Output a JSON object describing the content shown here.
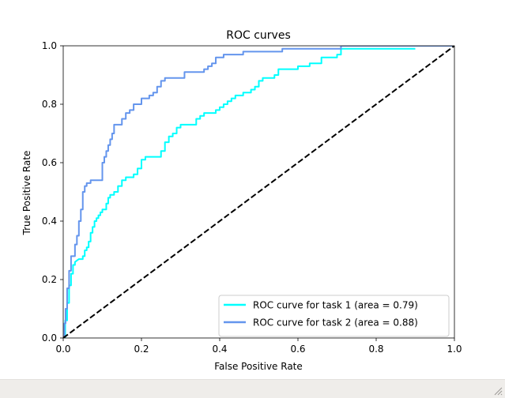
{
  "window": {
    "background": "#ffffff",
    "statusbar_color": "#efedea"
  },
  "chart_data": {
    "type": "line",
    "title": "ROC curves",
    "xlabel": "False Positive Rate",
    "ylabel": "True Positive Rate",
    "xlim": [
      0.0,
      1.0
    ],
    "ylim": [
      0.0,
      1.0
    ],
    "xticks": [
      0.0,
      0.2,
      0.4,
      0.6,
      0.8,
      1.0
    ],
    "yticks": [
      0.0,
      0.2,
      0.4,
      0.6,
      0.8,
      1.0
    ],
    "xtick_labels": [
      "0.0",
      "0.2",
      "0.4",
      "0.6",
      "0.8",
      "1.0"
    ],
    "ytick_labels": [
      "0.0",
      "0.2",
      "0.4",
      "0.6",
      "0.8",
      "1.0"
    ],
    "grid": false,
    "legend_position": "lower-right",
    "series": [
      {
        "name": "ROC curve for task 1 (area = 0.79)",
        "color": "#00ffff",
        "style": "solid",
        "x": [
          0.0,
          0.005,
          0.005,
          0.01,
          0.01,
          0.015,
          0.015,
          0.02,
          0.02,
          0.025,
          0.025,
          0.03,
          0.03,
          0.04,
          0.05,
          0.05,
          0.055,
          0.055,
          0.06,
          0.06,
          0.065,
          0.065,
          0.07,
          0.07,
          0.075,
          0.075,
          0.08,
          0.08,
          0.085,
          0.085,
          0.09,
          0.09,
          0.095,
          0.095,
          0.1,
          0.1,
          0.11,
          0.11,
          0.115,
          0.115,
          0.12,
          0.12,
          0.13,
          0.13,
          0.14,
          0.14,
          0.15,
          0.15,
          0.16,
          0.16,
          0.18,
          0.18,
          0.19,
          0.19,
          0.2,
          0.2,
          0.21,
          0.21,
          0.25,
          0.25,
          0.26,
          0.26,
          0.27,
          0.27,
          0.28,
          0.28,
          0.29,
          0.29,
          0.3,
          0.3,
          0.34,
          0.34,
          0.35,
          0.35,
          0.36,
          0.36,
          0.39,
          0.39,
          0.4,
          0.4,
          0.41,
          0.41,
          0.42,
          0.42,
          0.43,
          0.43,
          0.44,
          0.44,
          0.46,
          0.46,
          0.48,
          0.48,
          0.49,
          0.49,
          0.5,
          0.5,
          0.51,
          0.51,
          0.54,
          0.54,
          0.55,
          0.55,
          0.6,
          0.6,
          0.63,
          0.63,
          0.66,
          0.66,
          0.7,
          0.7,
          0.71,
          0.71,
          0.75,
          0.9
        ],
        "y": [
          0.0,
          0.0,
          0.06,
          0.06,
          0.12,
          0.12,
          0.18,
          0.18,
          0.22,
          0.22,
          0.25,
          0.25,
          0.26,
          0.27,
          0.27,
          0.28,
          0.28,
          0.3,
          0.3,
          0.31,
          0.31,
          0.33,
          0.33,
          0.36,
          0.36,
          0.38,
          0.38,
          0.4,
          0.4,
          0.41,
          0.41,
          0.42,
          0.42,
          0.43,
          0.43,
          0.44,
          0.44,
          0.46,
          0.46,
          0.48,
          0.48,
          0.49,
          0.49,
          0.5,
          0.5,
          0.52,
          0.52,
          0.54,
          0.54,
          0.55,
          0.55,
          0.56,
          0.56,
          0.58,
          0.58,
          0.61,
          0.61,
          0.62,
          0.62,
          0.64,
          0.64,
          0.67,
          0.67,
          0.69,
          0.69,
          0.7,
          0.7,
          0.72,
          0.72,
          0.73,
          0.73,
          0.75,
          0.75,
          0.76,
          0.76,
          0.77,
          0.77,
          0.78,
          0.78,
          0.79,
          0.79,
          0.8,
          0.8,
          0.81,
          0.81,
          0.82,
          0.82,
          0.83,
          0.83,
          0.84,
          0.84,
          0.85,
          0.85,
          0.86,
          0.86,
          0.88,
          0.88,
          0.89,
          0.89,
          0.9,
          0.9,
          0.92,
          0.92,
          0.93,
          0.93,
          0.94,
          0.94,
          0.96,
          0.96,
          0.97,
          0.97,
          0.99,
          0.99,
          0.99
        ]
      },
      {
        "name": "ROC curve for task 2 (area = 0.88)",
        "color": "#6495ed",
        "style": "solid",
        "x": [
          0.0,
          0.003,
          0.003,
          0.006,
          0.006,
          0.01,
          0.01,
          0.015,
          0.015,
          0.02,
          0.02,
          0.03,
          0.03,
          0.035,
          0.035,
          0.04,
          0.04,
          0.045,
          0.045,
          0.05,
          0.05,
          0.055,
          0.055,
          0.06,
          0.06,
          0.07,
          0.07,
          0.1,
          0.1,
          0.105,
          0.105,
          0.11,
          0.11,
          0.115,
          0.115,
          0.12,
          0.12,
          0.125,
          0.125,
          0.13,
          0.13,
          0.15,
          0.15,
          0.16,
          0.16,
          0.17,
          0.17,
          0.18,
          0.18,
          0.2,
          0.2,
          0.22,
          0.22,
          0.23,
          0.23,
          0.24,
          0.24,
          0.25,
          0.25,
          0.26,
          0.26,
          0.31,
          0.31,
          0.36,
          0.36,
          0.37,
          0.37,
          0.38,
          0.38,
          0.39,
          0.39,
          0.41,
          0.41,
          0.46,
          0.46,
          0.56,
          0.56,
          0.71,
          0.71,
          0.75,
          0.75,
          1.0
        ],
        "y": [
          0.0,
          0.0,
          0.05,
          0.05,
          0.1,
          0.1,
          0.17,
          0.17,
          0.23,
          0.23,
          0.28,
          0.28,
          0.32,
          0.32,
          0.35,
          0.35,
          0.4,
          0.4,
          0.44,
          0.44,
          0.5,
          0.5,
          0.52,
          0.52,
          0.53,
          0.53,
          0.54,
          0.54,
          0.6,
          0.6,
          0.62,
          0.62,
          0.64,
          0.64,
          0.66,
          0.66,
          0.68,
          0.68,
          0.7,
          0.7,
          0.73,
          0.73,
          0.75,
          0.75,
          0.77,
          0.77,
          0.78,
          0.78,
          0.8,
          0.8,
          0.82,
          0.82,
          0.83,
          0.83,
          0.84,
          0.84,
          0.86,
          0.86,
          0.88,
          0.88,
          0.89,
          0.89,
          0.91,
          0.91,
          0.92,
          0.92,
          0.93,
          0.93,
          0.94,
          0.94,
          0.96,
          0.96,
          0.97,
          0.97,
          0.98,
          0.98,
          0.99,
          0.99,
          1.0,
          1.0,
          1.0,
          1.0
        ]
      },
      {
        "color": "#000000",
        "style": "dashed",
        "x": [
          0.0,
          1.0
        ],
        "y": [
          0.0,
          1.0
        ]
      }
    ]
  }
}
